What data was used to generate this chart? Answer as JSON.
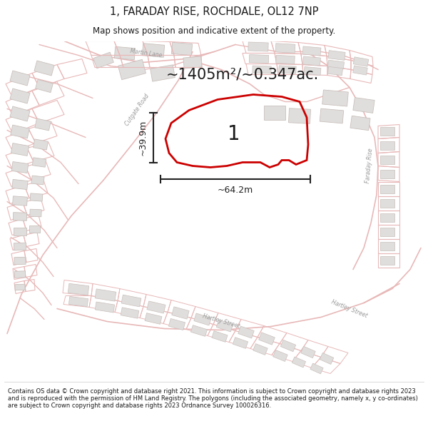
{
  "title": "1, FARADAY RISE, ROCHDALE, OL12 7NP",
  "subtitle": "Map shows position and indicative extent of the property.",
  "area_label": "~1405m²/~0.347ac.",
  "number_label": "1",
  "dim_height": "~39.9m",
  "dim_width": "~64.2m",
  "footer": "Contains OS data © Crown copyright and database right 2021. This information is subject to Crown copyright and database rights 2023 and is reproduced with the permission of HM Land Registry. The polygons (including the associated geometry, namely x, y co-ordinates) are subject to Crown copyright and database rights 2023 Ordnance Survey 100026316.",
  "map_bg": "#f9f8f7",
  "road_color": "#e8b8b8",
  "building_color_face": "#e0dedd",
  "building_color_edge": "#c8c0bc",
  "property_color": "#cc0000",
  "dim_color": "#222222",
  "title_color": "#1a1a1a",
  "footer_color": "#1a1a1a",
  "road_label_color": "#999999"
}
